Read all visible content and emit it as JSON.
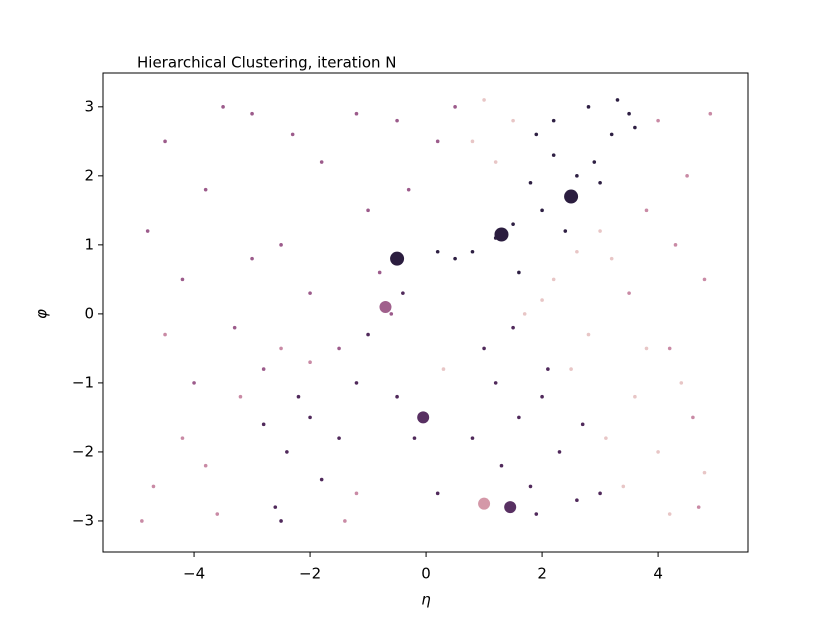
{
  "chart_data": {
    "type": "scatter",
    "title": "Hierarchical Clustering, iteration N",
    "x_label": "η",
    "y_label": "φ",
    "xlim": [
      -5.57,
      5.55
    ],
    "ylim": [
      -3.45,
      3.49
    ],
    "xticks": [
      {
        "value": -4,
        "label": "−4"
      },
      {
        "value": -2,
        "label": "−2"
      },
      0,
      2,
      4
    ],
    "yticks": [
      {
        "value": -3,
        "label": "−3"
      },
      {
        "value": -2,
        "label": "−2"
      },
      {
        "value": -1,
        "label": "−1"
      },
      0,
      1,
      2,
      3
    ],
    "grid": false,
    "series": [
      {
        "color": "#e8c6c6",
        "marker_size": 1.8,
        "x": [
          1.5,
          0.8,
          1.0,
          2.2,
          2.8,
          3.2,
          3.6,
          4.0,
          3.4,
          2.5,
          3.0,
          4.4,
          4.8,
          2.0,
          3.8,
          1.2,
          3.1,
          4.2,
          0.3,
          2.6,
          1.7
        ],
        "y": [
          2.8,
          2.5,
          3.1,
          0.5,
          -0.3,
          0.8,
          -1.2,
          -2.0,
          -2.5,
          -0.8,
          1.2,
          -1.0,
          -2.3,
          0.2,
          -0.5,
          2.2,
          -1.8,
          -2.9,
          -0.8,
          0.9,
          0.0
        ]
      },
      {
        "color": "#c98aa5",
        "marker_size": 1.8,
        "x": [
          -4.7,
          -4.2,
          -3.6,
          -3.2,
          -4.5,
          -3.8,
          -2.0,
          -2.5,
          -1.4,
          1.0,
          4.0,
          4.5,
          3.8,
          4.8,
          4.2,
          4.6,
          4.9,
          3.5,
          4.3,
          -4.9,
          -1.2,
          4.7
        ],
        "y": [
          -2.5,
          -1.8,
          -2.9,
          -1.2,
          -0.3,
          -2.2,
          -0.7,
          -0.5,
          -3.0,
          -2.8,
          2.8,
          2.0,
          1.5,
          0.5,
          -0.5,
          -1.5,
          2.9,
          0.3,
          1.0,
          -3.0,
          -2.6,
          -2.8
        ]
      },
      {
        "color": "#9c5b8b",
        "marker_size": 1.8,
        "x": [
          -4.5,
          -3.8,
          -3.0,
          -2.5,
          -1.8,
          -1.0,
          -0.5,
          -4.2,
          -3.3,
          -2.0,
          -1.5,
          -0.8,
          -0.3,
          -4.8,
          -3.5,
          -2.8,
          -1.2,
          0.2,
          0.5,
          -2.3,
          -4.0,
          -0.6,
          -3.0
        ],
        "y": [
          2.5,
          1.8,
          2.9,
          1.0,
          2.2,
          1.5,
          2.8,
          0.5,
          -0.2,
          0.3,
          -0.5,
          0.6,
          1.8,
          1.2,
          3.0,
          -0.8,
          2.9,
          2.5,
          3.0,
          2.6,
          -1.0,
          0.0,
          0.8
        ]
      },
      {
        "color": "#50295b",
        "marker_size": 1.8,
        "x": [
          1.0,
          1.2,
          1.6,
          2.0,
          2.3,
          1.8,
          2.6,
          3.0,
          1.3,
          0.8,
          2.1,
          1.5,
          -2.0,
          -2.4,
          -2.6,
          -1.8,
          -2.2,
          -1.5,
          -2.8,
          -0.5,
          -0.2,
          0.2,
          -1.0,
          -0.4,
          -1.2,
          2.7,
          1.9,
          -2.5
        ],
        "y": [
          -0.5,
          -1.0,
          -1.5,
          -1.2,
          -2.0,
          -2.5,
          -2.7,
          -2.6,
          -2.2,
          -1.8,
          -0.8,
          -0.2,
          -1.5,
          -2.0,
          -2.8,
          -2.4,
          -1.2,
          -1.8,
          -1.6,
          -1.2,
          -1.8,
          -2.6,
          -0.3,
          0.3,
          -1.0,
          -1.6,
          -2.9,
          -3.0
        ]
      },
      {
        "color": "#2e1f43",
        "marker_size": 1.8,
        "x": [
          2.8,
          3.2,
          3.5,
          2.2,
          1.8,
          2.6,
          1.5,
          1.2,
          0.8,
          0.5,
          2.0,
          2.9,
          3.3,
          1.9,
          2.4,
          0.2,
          3.0,
          1.6,
          2.2,
          3.6
        ],
        "y": [
          3.0,
          2.6,
          2.9,
          2.3,
          1.9,
          2.0,
          1.3,
          1.1,
          0.9,
          0.8,
          1.5,
          2.2,
          3.1,
          2.6,
          1.2,
          0.9,
          1.9,
          0.6,
          2.8,
          2.7
        ]
      },
      {
        "color": "#2b1d3f",
        "marker_size": 7,
        "x": [
          -0.5,
          2.5,
          1.3
        ],
        "y": [
          0.8,
          1.7,
          1.15
        ]
      },
      {
        "color": "#583062",
        "marker_size": 6,
        "x": [
          -0.05,
          1.45
        ],
        "y": [
          -1.5,
          -2.8
        ]
      },
      {
        "color": "#a0608c",
        "marker_size": 6,
        "x": [
          -0.7
        ],
        "y": [
          0.1
        ]
      },
      {
        "color": "#d498a8",
        "marker_size": 6,
        "x": [
          1.0
        ],
        "y": [
          -2.75
        ]
      }
    ]
  }
}
